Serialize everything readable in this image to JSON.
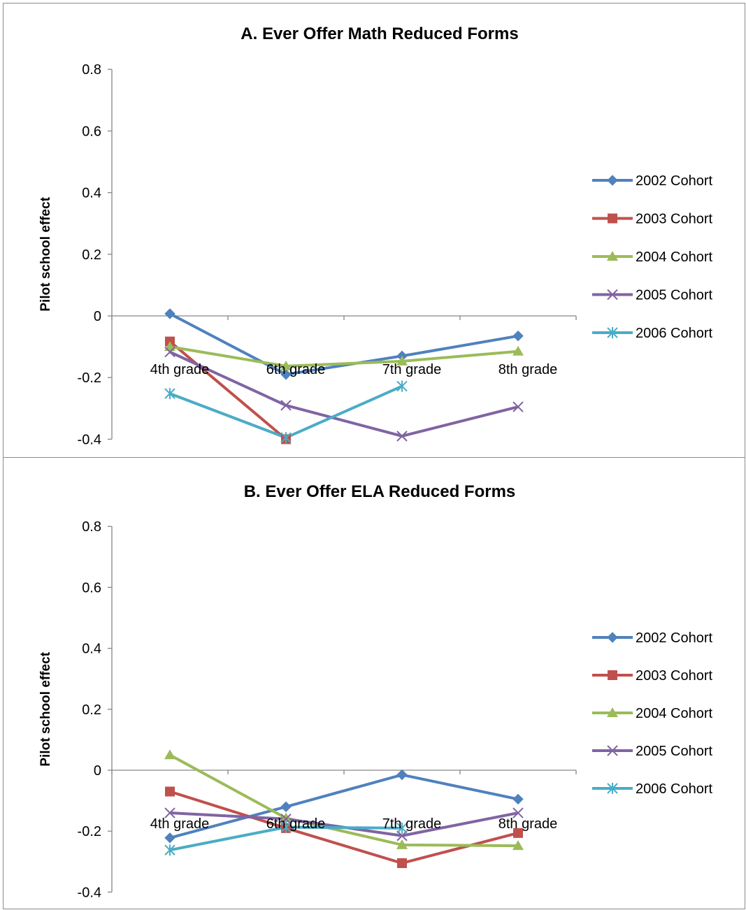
{
  "chart_data": [
    {
      "type": "line",
      "title": "A. Ever Offer Math Reduced Forms",
      "xlabel": "",
      "ylabel": "Pilot school effect",
      "ylim": [
        -0.4,
        0.8
      ],
      "yticks": [
        "0.8",
        "0.6",
        "0.4",
        "0.2",
        "0",
        "-0.2",
        "-0.4"
      ],
      "categories": [
        "4th grade",
        "6th grade",
        "7th grade",
        "8th grade"
      ],
      "legend_position": "right",
      "grid": false,
      "series": [
        {
          "name": "2002 Cohort",
          "color": "#4F81BD",
          "marker": "diamond",
          "values": [
            0.007,
            -0.19,
            -0.13,
            -0.065
          ]
        },
        {
          "name": "2003 Cohort",
          "color": "#C0504D",
          "marker": "square",
          "values": [
            -0.083,
            -0.4,
            null,
            null
          ]
        },
        {
          "name": "2004 Cohort",
          "color": "#9BBB59",
          "marker": "triangle",
          "values": [
            -0.1,
            -0.163,
            -0.147,
            -0.115
          ]
        },
        {
          "name": "2005 Cohort",
          "color": "#8064A2",
          "marker": "x",
          "values": [
            -0.117,
            -0.29,
            -0.39,
            -0.295
          ]
        },
        {
          "name": "2006 Cohort",
          "color": "#4BACC6",
          "marker": "star",
          "values": [
            -0.252,
            -0.395,
            -0.228,
            null
          ]
        }
      ]
    },
    {
      "type": "line",
      "title": "B. Ever Offer ELA Reduced Forms",
      "xlabel": "",
      "ylabel": "Pilot school effect",
      "ylim": [
        -0.4,
        0.8
      ],
      "yticks": [
        "0.8",
        "0.6",
        "0.4",
        "0.2",
        "0",
        "-0.2",
        "-0.4"
      ],
      "categories": [
        "4th grade",
        "6th grade",
        "7th grade",
        "8th grade"
      ],
      "legend_position": "right",
      "grid": false,
      "series": [
        {
          "name": "2002 Cohort",
          "color": "#4F81BD",
          "marker": "diamond",
          "values": [
            -0.222,
            -0.12,
            -0.015,
            -0.095
          ]
        },
        {
          "name": "2003 Cohort",
          "color": "#C0504D",
          "marker": "square",
          "values": [
            -0.07,
            -0.19,
            -0.305,
            -0.206
          ]
        },
        {
          "name": "2004 Cohort",
          "color": "#9BBB59",
          "marker": "triangle",
          "values": [
            0.05,
            -0.157,
            -0.245,
            -0.248
          ]
        },
        {
          "name": "2005 Cohort",
          "color": "#8064A2",
          "marker": "x",
          "values": [
            -0.14,
            -0.16,
            -0.215,
            -0.14
          ]
        },
        {
          "name": "2006 Cohort",
          "color": "#4BACC6",
          "marker": "star",
          "values": [
            -0.262,
            -0.187,
            -0.19,
            null
          ]
        }
      ]
    }
  ]
}
